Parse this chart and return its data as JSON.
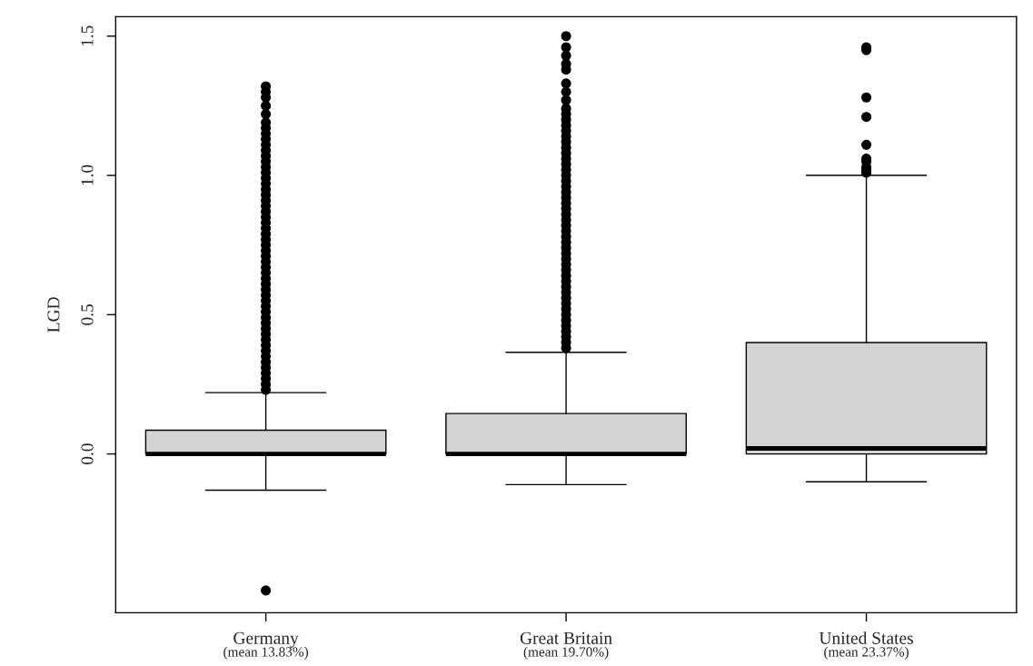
{
  "chart_data": {
    "type": "box",
    "ylabel": "LGD",
    "categories": [
      "Germany",
      "Great Britain",
      "United States"
    ],
    "annotations": [
      "(mean 13.83%)",
      "(mean 19.70%)",
      "(mean 23.37%)"
    ],
    "ylim": [
      -0.57,
      1.57
    ],
    "yticks": [
      {
        "value": 0,
        "label": "0.0"
      },
      {
        "value": 0.5,
        "label": "0.5"
      },
      {
        "value": 1,
        "label": "1.0"
      },
      {
        "value": 1.5,
        "label": "1.5"
      }
    ],
    "color": "#d3d3d3",
    "grid": false,
    "legend": false,
    "boxes": [
      {
        "low": -0.13,
        "q1": 0.0,
        "median": 0.0,
        "q3": 0.085,
        "high": 0.22,
        "outliers": [
          -0.49,
          0.23,
          0.25,
          0.27,
          0.29,
          0.31,
          0.33,
          0.35,
          0.37,
          0.39,
          0.41,
          0.43,
          0.45,
          0.47,
          0.49,
          0.51,
          0.53,
          0.55,
          0.57,
          0.59,
          0.61,
          0.63,
          0.65,
          0.67,
          0.69,
          0.71,
          0.73,
          0.75,
          0.77,
          0.79,
          0.81,
          0.83,
          0.85,
          0.87,
          0.89,
          0.91,
          0.93,
          0.95,
          0.97,
          0.99,
          1.01,
          1.03,
          1.05,
          1.07,
          1.09,
          1.11,
          1.13,
          1.15,
          1.17,
          1.19,
          1.22,
          1.25,
          1.28,
          1.3,
          1.32
        ]
      },
      {
        "low": -0.11,
        "q1": 0.0,
        "median": 0.0,
        "q3": 0.145,
        "high": 0.365,
        "outliers": [
          0.38,
          0.4,
          0.42,
          0.44,
          0.46,
          0.48,
          0.5,
          0.52,
          0.54,
          0.56,
          0.58,
          0.6,
          0.62,
          0.64,
          0.66,
          0.68,
          0.7,
          0.72,
          0.74,
          0.76,
          0.78,
          0.8,
          0.82,
          0.84,
          0.86,
          0.88,
          0.9,
          0.92,
          0.94,
          0.96,
          0.98,
          1.0,
          1.02,
          1.04,
          1.06,
          1.08,
          1.1,
          1.12,
          1.14,
          1.16,
          1.18,
          1.2,
          1.22,
          1.24,
          1.27,
          1.3,
          1.33,
          1.38,
          1.4,
          1.43,
          1.46,
          1.5
        ]
      },
      {
        "low": -0.1,
        "q1": 0.0,
        "median": 0.02,
        "q3": 0.4,
        "high": 1.0,
        "outliers": [
          1.01,
          1.02,
          1.03,
          1.05,
          1.06,
          1.11,
          1.21,
          1.28,
          1.45,
          1.46
        ]
      }
    ]
  }
}
